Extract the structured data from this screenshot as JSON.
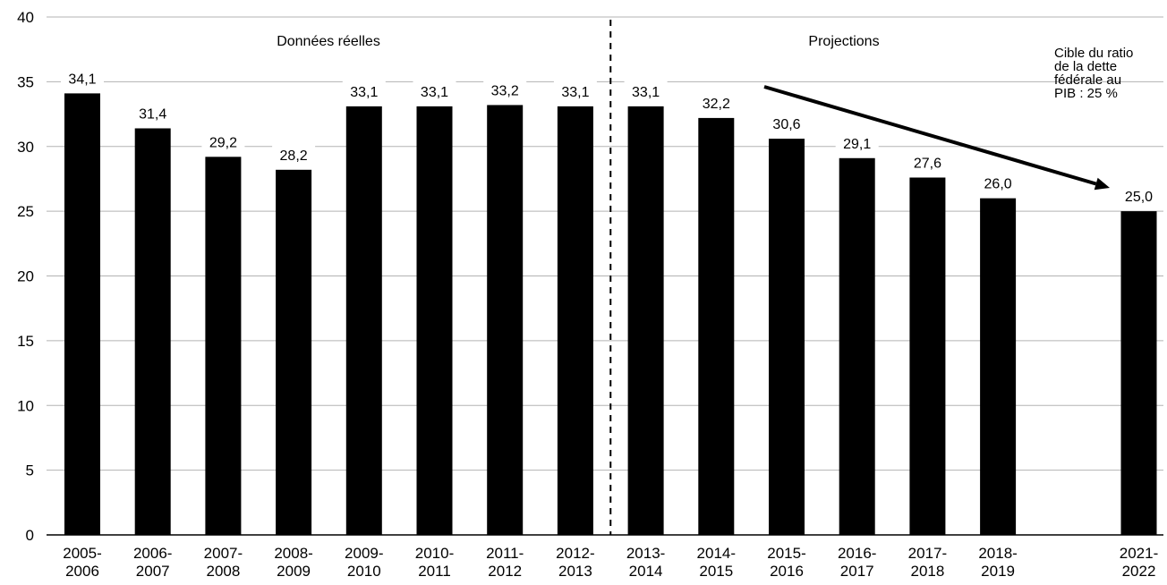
{
  "chart_data": {
    "type": "bar",
    "categories": [
      [
        "2005-",
        "2006"
      ],
      [
        "2006-",
        "2007"
      ],
      [
        "2007-",
        "2008"
      ],
      [
        "2008-",
        "2009"
      ],
      [
        "2009-",
        "2010"
      ],
      [
        "2010-",
        "2011"
      ],
      [
        "2011-",
        "2012"
      ],
      [
        "2012-",
        "2013"
      ],
      [
        "2013-",
        "2014"
      ],
      [
        "2014-",
        "2015"
      ],
      [
        "2015-",
        "2016"
      ],
      [
        "2016-",
        "2017"
      ],
      [
        "2017-",
        "2018"
      ],
      [
        "2018-",
        "2019"
      ],
      [
        "2021-",
        "2022"
      ]
    ],
    "values": [
      34.1,
      31.4,
      29.2,
      28.2,
      33.1,
      33.1,
      33.2,
      33.1,
      33.1,
      32.2,
      30.6,
      29.1,
      27.6,
      26.0,
      25.0
    ],
    "value_labels": [
      "34,1",
      "31,4",
      "29,2",
      "28,2",
      "33,1",
      "33,1",
      "33,2",
      "33,1",
      "33,1",
      "32,2",
      "30,6",
      "29,1",
      "27,6",
      "26,0",
      "25,0"
    ],
    "yticks": [
      0,
      5,
      10,
      15,
      20,
      25,
      30,
      35,
      40
    ],
    "ylim": [
      0,
      40
    ],
    "title": "",
    "xlabel": "",
    "ylabel": "",
    "grid": true,
    "bar_color": "#000000",
    "grid_color": "#b3b3b3",
    "sections": {
      "actual_label": "Données réelles",
      "projection_label": "Projections",
      "divider_between": [
        "2012-2013",
        "2013-2014"
      ]
    },
    "annotation": {
      "lines": [
        "Cible du ratio",
        "de la dette",
        "fédérale au",
        "PIB : 25 %"
      ],
      "arrow_from": "2014-2015",
      "arrow_to": "2021-2022"
    }
  }
}
